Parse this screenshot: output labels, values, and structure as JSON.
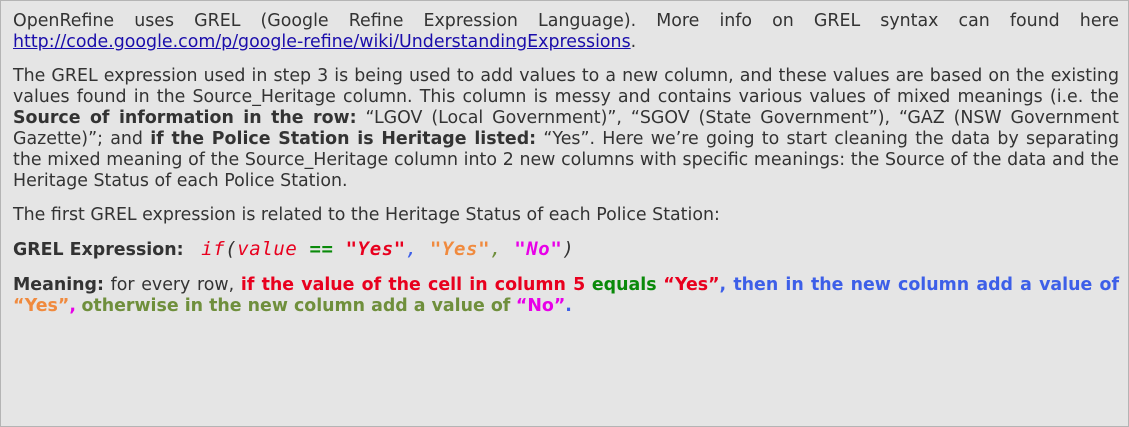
{
  "intro": {
    "text": "OpenRefine uses GREL (Google Refine Expression Language). More info on GREL syntax can found here",
    "link": "http://code.google.com/p/google-refine/wiki/UnderstandingExpressions",
    "after_link": "."
  },
  "explanation": {
    "t1": "The GREL expression used in step 3 is being used to add values to a new column, and these values are based on the existing values found in the Source_Heritage column. This column is messy and contains various values of mixed meanings (i.e. the ",
    "b1": "Source of information in the row:",
    "t2": " “LGOV (Local Government)”, “SGOV (State Government”), “GAZ (NSW Government Gazette)”; and ",
    "b2": "if the Police Station is Heritage listed:",
    "t3": " “Yes”. Here we’re going to start cleaning the data by separating the mixed meaning of the Source_Heritage column into 2 new columns with specific meanings: the Source of the data and the Heritage Status of each Police Station."
  },
  "first_expr_text": "The first GREL expression is related to the Heritage Status of each Police Station:",
  "expression": {
    "label": "GREL Expression:",
    "if_kw": "if",
    "open_paren": "(",
    "value_kw": "value",
    "eq_op": "==",
    "arg1": "\"Yes\"",
    "comma1": ",",
    "arg2": "\"Yes\"",
    "comma2": ",",
    "arg3": "\"No\"",
    "close_paren": ")"
  },
  "meaning": {
    "label": "Meaning:",
    "p1": "for every row,",
    "p2": "if the value of the cell in column 5",
    "p3": "equals",
    "p4": "“Yes”",
    "p5": ", then in the new column add a value of",
    "p6": "“Yes”",
    "p7": ",",
    "p8": "otherwise in the new column add a value of",
    "p9": "“No”",
    "p10": "."
  },
  "colors": {
    "background": "#e5e5e5",
    "text": "#333333",
    "red": "#e8001e",
    "green": "#0a8a0a",
    "blue": "#3d5fe8",
    "orange": "#f08a3e",
    "olive": "#6f8f3c",
    "magenta": "#e800e8"
  }
}
